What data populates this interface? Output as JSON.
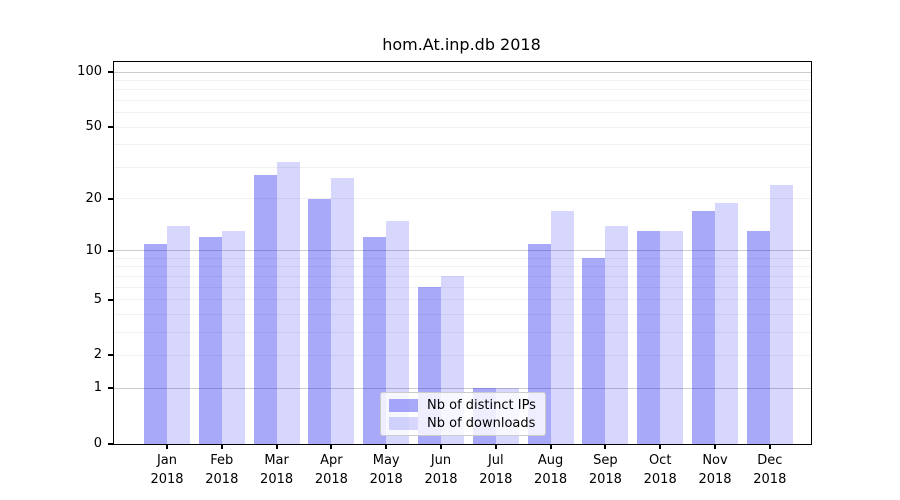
{
  "window": {
    "background": "#ffffff"
  },
  "chart_data": {
    "type": "bar",
    "title": "hom.At.inp.db 2018",
    "x_month_labels": [
      "Jan",
      "Feb",
      "Mar",
      "Apr",
      "May",
      "Jun",
      "Jul",
      "Aug",
      "Sep",
      "Oct",
      "Nov",
      "Dec"
    ],
    "x_year_label": "2018",
    "series": [
      {
        "name": "Nb of distinct IPs",
        "color": "rgba(8,8,242,0.35)",
        "rendered_hex": "#a9a9fa",
        "values": [
          11,
          12,
          27,
          20,
          12,
          6,
          1,
          11,
          9,
          13,
          17,
          13
        ]
      },
      {
        "name": "Nb of downloads",
        "color": "rgba(8,8,242,0.16)",
        "rendered_hex": "#d8d8f9",
        "values": [
          14,
          13,
          32,
          26,
          15,
          7,
          1,
          17,
          14,
          13,
          19,
          24
        ]
      }
    ],
    "y_axis": {
      "scale": "log1p",
      "tick_values": [
        0,
        1,
        2,
        5,
        10,
        20,
        50,
        100
      ],
      "tick_labels": [
        "0",
        "1",
        "2",
        "5",
        "10",
        "20",
        "50",
        "100"
      ],
      "axis_top_value": 113,
      "major_gridlines": [
        1,
        10,
        100
      ],
      "minor_gridlines": [
        2,
        3,
        4,
        5,
        6,
        7,
        8,
        9,
        20,
        30,
        40,
        50,
        60,
        70,
        80,
        90
      ]
    },
    "legend": {
      "position": "lower center",
      "entries": [
        "Nb of distinct IPs",
        "Nb of downloads"
      ]
    },
    "grid": true
  },
  "colors": {
    "axis": "#000000",
    "major_gridline": "#cccccc",
    "minor_gridline": "#f1f1f1",
    "legend_border": "#cccccc",
    "ips_bar": "#a9a9fa",
    "downloads_bar": "#d8d8f9"
  }
}
